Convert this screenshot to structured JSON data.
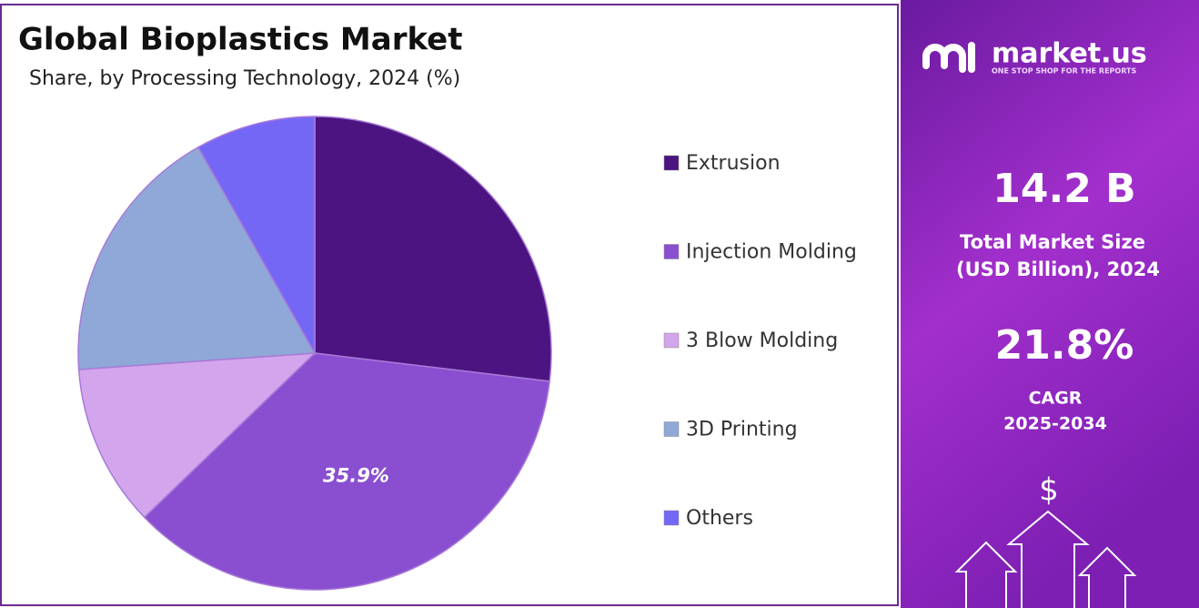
{
  "chart_data": {
    "type": "pie",
    "title": "Global Bioplastics Market",
    "subtitle": "Share, by Processing Technology, 2024 (%)",
    "categories": [
      "Extrusion",
      "Injection Molding",
      "3 Blow Molding",
      "3D Printing",
      "Others"
    ],
    "values": [
      26.9,
      35.9,
      11.1,
      17.9,
      8.2
    ],
    "value_labels": [
      null,
      "35.9%",
      null,
      null,
      null
    ],
    "colors": [
      "#4b1480",
      "#8a4fd0",
      "#d3a5ec",
      "#8fa8d8",
      "#7467f5"
    ],
    "legend": "right"
  },
  "panel": {
    "brand": "market.us",
    "tagline": "ONE STOP SHOP FOR THE REPORTS",
    "market_size": "14.2 B",
    "market_size_label_1": "Total Market Size",
    "market_size_label_2": "(USD Billion), 2024",
    "cagr": "21.8%",
    "cagr_label": "CAGR",
    "cagr_period": "2025-2034",
    "currency_icon": "$"
  }
}
